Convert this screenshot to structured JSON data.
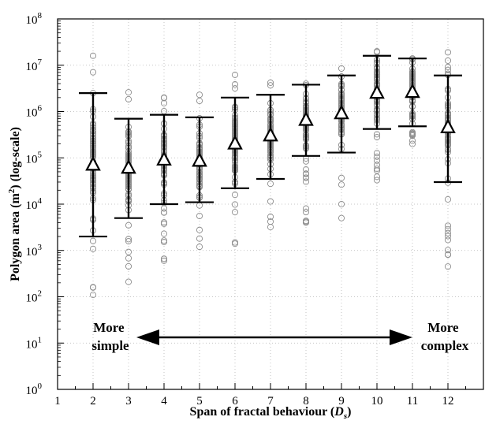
{
  "chart_data": {
    "type": "scatter",
    "title": "",
    "xlabel_main": "Span of fractal behaviour (",
    "xlabel_var": "D",
    "xlabel_sub": "s",
    "xlabel_close": ")",
    "ylabel_a": "Polygon area (m",
    "ylabel_sup": "2",
    "ylabel_b": ") (log-scale)",
    "xlim": [
      1,
      13
    ],
    "ylim_log10": [
      0,
      8
    ],
    "yscale": "log",
    "x_ticks": [
      "1",
      "2",
      "3",
      "4",
      "5",
      "6",
      "7",
      "8",
      "9",
      "10",
      "11",
      "12"
    ],
    "y_ticks": [
      {
        "base": "10",
        "exp": "0"
      },
      {
        "base": "10",
        "exp": "1"
      },
      {
        "base": "10",
        "exp": "2"
      },
      {
        "base": "10",
        "exp": "3"
      },
      {
        "base": "10",
        "exp": "4"
      },
      {
        "base": "10",
        "exp": "5"
      },
      {
        "base": "10",
        "exp": "6"
      },
      {
        "base": "10",
        "exp": "7"
      },
      {
        "base": "10",
        "exp": "8"
      }
    ],
    "grid": "dotted",
    "groups": [
      {
        "x": 2,
        "mean": 70000,
        "lower": 2000,
        "upper": 2500000,
        "pmin": 110,
        "pmax": 16000000
      },
      {
        "x": 3,
        "mean": 60000,
        "lower": 5000,
        "upper": 700000,
        "pmin": 210,
        "pmax": 2600000
      },
      {
        "x": 4,
        "mean": 90000,
        "lower": 10000,
        "upper": 850000,
        "pmin": 600,
        "pmax": 2000000
      },
      {
        "x": 5,
        "mean": 85000,
        "lower": 11000,
        "upper": 750000,
        "pmin": 1200,
        "pmax": 2300000
      },
      {
        "x": 6,
        "mean": 200000,
        "lower": 22000,
        "upper": 2000000,
        "pmin": 1400,
        "pmax": 6200000
      },
      {
        "x": 7,
        "mean": 300000,
        "lower": 35000,
        "upper": 2300000,
        "pmin": 3200,
        "pmax": 4200000
      },
      {
        "x": 8,
        "mean": 650000,
        "lower": 110000,
        "upper": 3800000,
        "pmin": 4000,
        "pmax": 4000000
      },
      {
        "x": 9,
        "mean": 900000,
        "lower": 130000,
        "upper": 6000000,
        "pmin": 5000,
        "pmax": 8500000
      },
      {
        "x": 10,
        "mean": 2500000,
        "lower": 420000,
        "upper": 16000000,
        "pmin": 33000,
        "pmax": 20000000
      },
      {
        "x": 11,
        "mean": 2600000,
        "lower": 480000,
        "upper": 14000000,
        "pmin": 200000,
        "pmax": 14000000
      },
      {
        "x": 12,
        "mean": 450000,
        "lower": 30000,
        "upper": 6000000,
        "pmin": 450,
        "pmax": 19000000
      }
    ],
    "annotation_left": [
      "More",
      "simple"
    ],
    "annotation_right": [
      "More",
      "complex"
    ]
  }
}
